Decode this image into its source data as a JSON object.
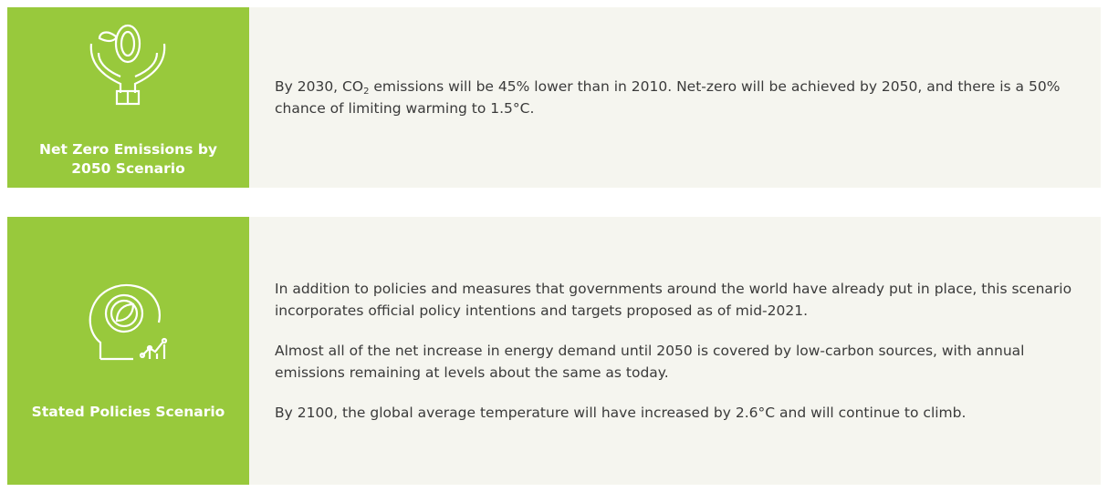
{
  "cards": [
    {
      "title": "Net Zero Emissions by 2050 Scenario",
      "paragraphs": [
        [
          "By 2030, CO",
          "2",
          " emissions will be 45% lower than in 2010. Net-zero will be achieved by 2050, and there is a 50% chance of limiting warming to 1.5°C."
        ]
      ]
    },
    {
      "title": "Stated Policies Scenario",
      "paragraphs": [
        [
          "In addition to policies and measures that governments around the world have already put in place, this scenario incorporates official policy intentions and targets proposed as of mid-2021."
        ],
        [
          "Almost all of the net increase in energy demand until 2050 is covered by low-carbon sources, with annual emissions remaining at levels about the same as today."
        ],
        [
          "By 2100, the global average temperature will have increased by 2.6°C and will continue to climb."
        ]
      ]
    }
  ]
}
